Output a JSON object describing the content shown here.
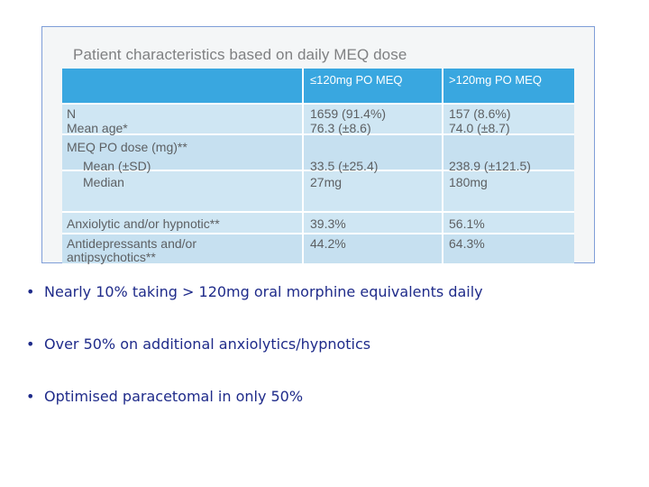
{
  "table": {
    "title": "Patient characteristics based on daily MEQ dose",
    "headers": [
      "",
      "≤120mg PO MEQ",
      ">120mg PO MEQ"
    ],
    "rows": [
      {
        "label": "N",
        "low": "1659 (91.4%)",
        "high": "157 (8.6%)"
      },
      {
        "label": "Mean age*",
        "low": "76.3 (±8.6)",
        "high": "74.0 (±8.7)"
      },
      {
        "label": "MEQ PO dose (mg)**",
        "low": "",
        "high": ""
      },
      {
        "label": "Mean (±SD)",
        "low": "33.5 (±25.4)",
        "high": "238.9 (±121.5)"
      },
      {
        "label": "Median",
        "low": "27mg",
        "high": "180mg"
      },
      {
        "label": "Anxiolytic and/or hypnotic**",
        "low": "39.3%",
        "high": "56.1%"
      },
      {
        "label": "Antidepressants and/or",
        "low": "44.2%",
        "high": "64.3%"
      },
      {
        "label": "antipsychotics**",
        "low": "",
        "high": ""
      }
    ]
  },
  "bullets": [
    "Nearly 10% taking > 120mg oral morphine equivalents daily",
    "Over 50% on additional anxiolytics/hypnotics",
    "Optimised paracetomal in only 50%"
  ],
  "colors": {
    "header_bg": "#39a7e0",
    "row_bg": "#cfe6f3",
    "bullet_text": "#1f2b8a"
  }
}
